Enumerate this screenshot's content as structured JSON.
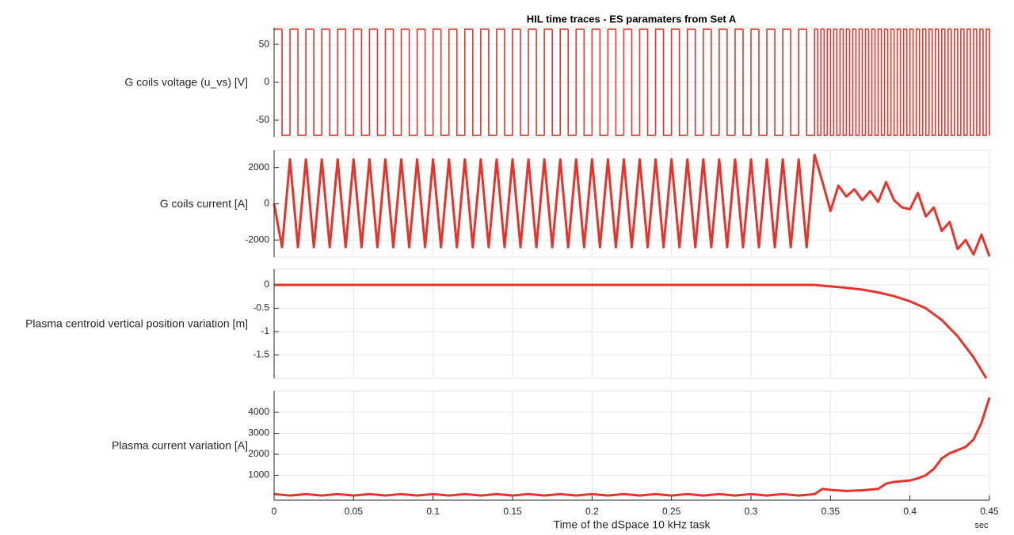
{
  "chart_data": [
    {
      "type": "line",
      "title": "HIL time traces - ES paramaters from Set A",
      "ylabel": "G coils voltage (u_vs) [V]",
      "step": true,
      "color": "#e8332a",
      "grid": true,
      "xlim": [
        0,
        0.45
      ],
      "xticks": [
        0,
        0.05,
        0.1,
        0.15,
        0.2,
        0.25,
        0.3,
        0.35,
        0.4,
        0.45
      ],
      "ylim": [
        -72,
        72
      ],
      "yticks": [
        -50,
        0,
        50
      ],
      "x": [
        0,
        0.005,
        0.01,
        0.015,
        0.02,
        0.025,
        0.03,
        0.035,
        0.04,
        0.045,
        0.05,
        0.055,
        0.06,
        0.065,
        0.07,
        0.075,
        0.08,
        0.085,
        0.09,
        0.095,
        0.1,
        0.105,
        0.11,
        0.115,
        0.12,
        0.125,
        0.13,
        0.135,
        0.14,
        0.145,
        0.15,
        0.155,
        0.16,
        0.165,
        0.17,
        0.175,
        0.18,
        0.185,
        0.19,
        0.195,
        0.2,
        0.205,
        0.21,
        0.215,
        0.22,
        0.225,
        0.23,
        0.235,
        0.24,
        0.245,
        0.25,
        0.255,
        0.26,
        0.265,
        0.27,
        0.275,
        0.28,
        0.285,
        0.29,
        0.295,
        0.3,
        0.305,
        0.31,
        0.315,
        0.32,
        0.325,
        0.33,
        0.335,
        0.34,
        0.342,
        0.344,
        0.346,
        0.348,
        0.35,
        0.352,
        0.354,
        0.356,
        0.358,
        0.36,
        0.362,
        0.364,
        0.366,
        0.368,
        0.37,
        0.372,
        0.374,
        0.376,
        0.378,
        0.38,
        0.382,
        0.384,
        0.386,
        0.388,
        0.39,
        0.392,
        0.394,
        0.396,
        0.398,
        0.4,
        0.402,
        0.404,
        0.406,
        0.408,
        0.41,
        0.412,
        0.414,
        0.416,
        0.418,
        0.42,
        0.422,
        0.424,
        0.426,
        0.428,
        0.43,
        0.432,
        0.434,
        0.436,
        0.438,
        0.44,
        0.442,
        0.444,
        0.446,
        0.448,
        0.45
      ],
      "values": [
        70,
        -70,
        70,
        -70,
        70,
        -70,
        70,
        -70,
        70,
        -70,
        70,
        -70,
        70,
        -70,
        70,
        -70,
        70,
        -70,
        70,
        -70,
        70,
        -70,
        70,
        -70,
        70,
        -70,
        70,
        -70,
        70,
        -70,
        70,
        -70,
        70,
        -70,
        70,
        -70,
        70,
        -70,
        70,
        -70,
        70,
        -70,
        70,
        -70,
        70,
        -70,
        70,
        -70,
        70,
        -70,
        70,
        -70,
        70,
        -70,
        70,
        -70,
        70,
        -70,
        70,
        -70,
        70,
        -70,
        70,
        -70,
        70,
        -70,
        70,
        -70,
        70,
        -70,
        70,
        -70,
        70,
        -70,
        70,
        -70,
        70,
        -70,
        70,
        -70,
        70,
        -70,
        70,
        -70,
        70,
        -70,
        70,
        -70,
        70,
        -70,
        70,
        -70,
        70,
        -70,
        70,
        -70,
        70,
        -70,
        70,
        -70,
        70,
        -70,
        70,
        -70,
        70,
        -70,
        70,
        -70,
        70,
        -70,
        70,
        -70,
        70,
        -70,
        70,
        -70,
        70,
        -70,
        70,
        -70,
        70,
        -70,
        70,
        -70
      ]
    },
    {
      "type": "line",
      "ylabel": "G coils current [A]",
      "color": "#e8332a",
      "grid": true,
      "xlim": [
        0,
        0.45
      ],
      "xticks": [
        0,
        0.05,
        0.1,
        0.15,
        0.2,
        0.25,
        0.3,
        0.35,
        0.4,
        0.45
      ],
      "ylim": [
        -2950,
        2950
      ],
      "yticks": [
        -2000,
        0,
        2000
      ],
      "x": [
        0,
        0.005,
        0.01,
        0.015,
        0.02,
        0.025,
        0.03,
        0.035,
        0.04,
        0.045,
        0.05,
        0.055,
        0.06,
        0.065,
        0.07,
        0.075,
        0.08,
        0.085,
        0.09,
        0.095,
        0.1,
        0.105,
        0.11,
        0.115,
        0.12,
        0.125,
        0.13,
        0.135,
        0.14,
        0.145,
        0.15,
        0.155,
        0.16,
        0.165,
        0.17,
        0.175,
        0.18,
        0.185,
        0.19,
        0.195,
        0.2,
        0.205,
        0.21,
        0.215,
        0.22,
        0.225,
        0.23,
        0.235,
        0.24,
        0.245,
        0.25,
        0.255,
        0.26,
        0.265,
        0.27,
        0.275,
        0.28,
        0.285,
        0.29,
        0.295,
        0.3,
        0.305,
        0.31,
        0.315,
        0.32,
        0.325,
        0.33,
        0.335,
        0.34,
        0.345,
        0.35,
        0.355,
        0.36,
        0.365,
        0.37,
        0.375,
        0.38,
        0.385,
        0.39,
        0.395,
        0.4,
        0.405,
        0.41,
        0.415,
        0.42,
        0.425,
        0.43,
        0.435,
        0.44,
        0.445,
        0.45
      ],
      "values": [
        0,
        -2400,
        2450,
        -2400,
        2450,
        -2400,
        2450,
        -2400,
        2450,
        -2400,
        2450,
        -2400,
        2450,
        -2400,
        2450,
        -2400,
        2450,
        -2400,
        2450,
        -2400,
        2450,
        -2400,
        2450,
        -2400,
        2450,
        -2400,
        2450,
        -2400,
        2450,
        -2400,
        2450,
        -2400,
        2450,
        -2400,
        2450,
        -2400,
        2450,
        -2400,
        2450,
        -2400,
        2450,
        -2400,
        2450,
        -2400,
        2450,
        -2400,
        2450,
        -2400,
        2450,
        -2400,
        2450,
        -2400,
        2450,
        -2400,
        2450,
        -2400,
        2450,
        -2400,
        2450,
        -2400,
        2450,
        -2400,
        2450,
        -2400,
        2450,
        -2400,
        2450,
        -2400,
        2700,
        1200,
        -400,
        1000,
        400,
        800,
        200,
        700,
        100,
        1200,
        200,
        -200,
        -300,
        600,
        -700,
        -200,
        -1500,
        -1000,
        -2500,
        -2000,
        -2800,
        -1700,
        -2900
      ]
    },
    {
      "type": "line",
      "ylabel": "Plasma centroid vertical position variation [m]",
      "color": "#e8332a",
      "grid": true,
      "xlim": [
        0,
        0.45
      ],
      "xticks": [
        0,
        0.05,
        0.1,
        0.15,
        0.2,
        0.25,
        0.3,
        0.35,
        0.4,
        0.45
      ],
      "ylim": [
        -2.0,
        0.34
      ],
      "yticks": [
        -1.5,
        -1,
        -0.5,
        0
      ],
      "x": [
        0,
        0.1,
        0.2,
        0.3,
        0.34,
        0.35,
        0.36,
        0.37,
        0.38,
        0.39,
        0.4,
        0.41,
        0.42,
        0.43,
        0.44,
        0.448
      ],
      "values": [
        0,
        0,
        0,
        0,
        0,
        -0.03,
        -0.06,
        -0.1,
        -0.16,
        -0.24,
        -0.35,
        -0.5,
        -0.75,
        -1.1,
        -1.55,
        -2.0
      ]
    },
    {
      "type": "line",
      "ylabel": "Plasma current variation [A]",
      "color": "#e8332a",
      "grid": true,
      "xlabel": "Time of the dSpace 10 kHz task",
      "xunit": "sec",
      "xlim": [
        0,
        0.45
      ],
      "xticks": [
        0,
        0.05,
        0.1,
        0.15,
        0.2,
        0.25,
        0.3,
        0.35,
        0.4,
        0.45
      ],
      "ylim": [
        -190,
        5020
      ],
      "yticks": [
        1000,
        2000,
        3000,
        4000
      ],
      "x": [
        0,
        0.01,
        0.02,
        0.03,
        0.04,
        0.05,
        0.06,
        0.07,
        0.08,
        0.09,
        0.1,
        0.11,
        0.12,
        0.13,
        0.14,
        0.15,
        0.16,
        0.17,
        0.18,
        0.19,
        0.2,
        0.21,
        0.22,
        0.23,
        0.24,
        0.25,
        0.26,
        0.27,
        0.28,
        0.29,
        0.3,
        0.31,
        0.32,
        0.33,
        0.34,
        0.345,
        0.35,
        0.36,
        0.37,
        0.38,
        0.385,
        0.39,
        0.4,
        0.405,
        0.41,
        0.415,
        0.42,
        0.425,
        0.43,
        0.435,
        0.44,
        0.445,
        0.45
      ],
      "values": [
        100,
        30,
        100,
        30,
        100,
        30,
        100,
        30,
        100,
        30,
        100,
        30,
        100,
        30,
        100,
        30,
        100,
        30,
        100,
        30,
        100,
        30,
        100,
        30,
        100,
        30,
        100,
        30,
        100,
        30,
        100,
        30,
        100,
        30,
        100,
        350,
        300,
        250,
        280,
        350,
        600,
        680,
        750,
        850,
        1000,
        1300,
        1800,
        2050,
        2200,
        2350,
        2700,
        3500,
        4700
      ]
    }
  ]
}
